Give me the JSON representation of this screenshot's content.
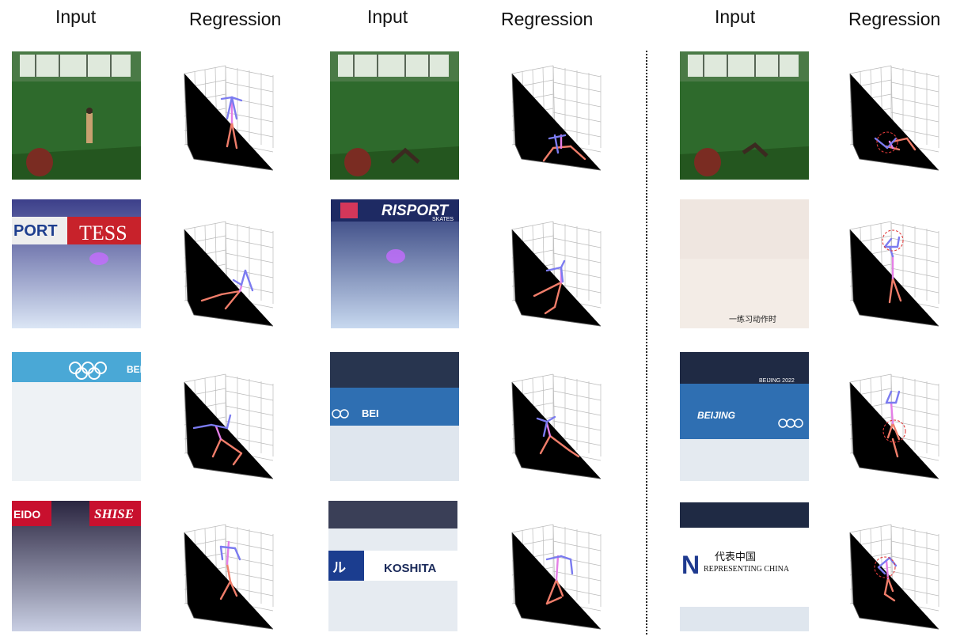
{
  "headers": [
    "Input",
    "Regression",
    "Input",
    "Regression",
    "Input",
    "Regression"
  ],
  "captions": {
    "skate_caption": "一练习动作时",
    "banner_1_zh": "代表中国",
    "banner_1_en": "REPRESENTING CHINA"
  },
  "sponsor_text": {
    "tessa": "TESS",
    "sport": "PORT",
    "risport": "RISPORT",
    "risport_sub": "SKATES",
    "beijing": "BEI",
    "beijing_2022": "BEIJING 2022",
    "beijing_b": "BEIJING",
    "shiseido": "EIDO",
    "shiseido2": "SHISE",
    "kose": "KOSHITA",
    "nbta": "N",
    "ruru": "ル"
  },
  "colors": {
    "upper_body": "#7b7bf0",
    "lower_body": "#f07d6a",
    "spine": "#e47fe6",
    "highlight_circle": "#e03a3a",
    "green_room": "#2d6a2b",
    "ice": "#d9e2ee"
  },
  "poses": [
    "stand",
    "sit_sprawl",
    "sit_sprawl_circle",
    "spiral",
    "spiral2",
    "raise_arms_circle",
    "glide",
    "glide2",
    "glide_circle",
    "spin",
    "spin2",
    "spin_circle"
  ]
}
